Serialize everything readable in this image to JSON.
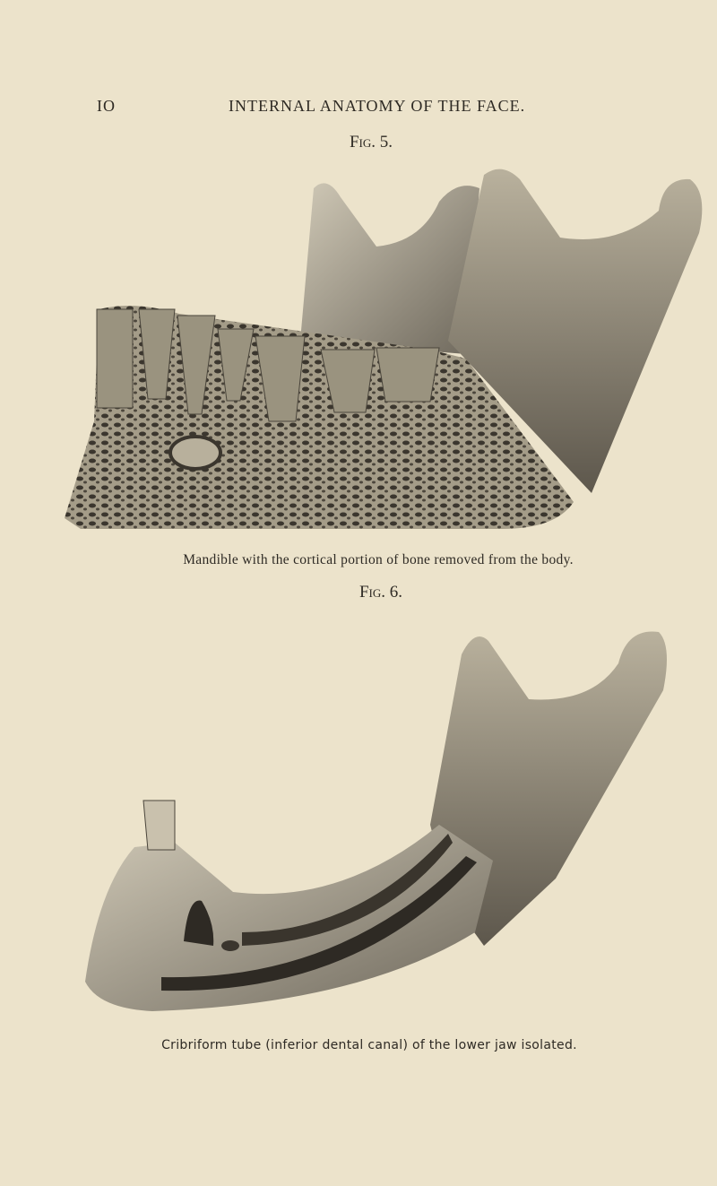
{
  "header": {
    "page_number": "IO",
    "running_title": "INTERNAL ANATOMY OF THE FACE."
  },
  "figures": [
    {
      "label": "Fig. 5.",
      "caption": "Mandible with the cortical portion of bone removed from the body."
    },
    {
      "label": "Fig. 6.",
      "caption": "Cribriform tube (inferior dental canal) of the lower jaw isolated."
    }
  ]
}
